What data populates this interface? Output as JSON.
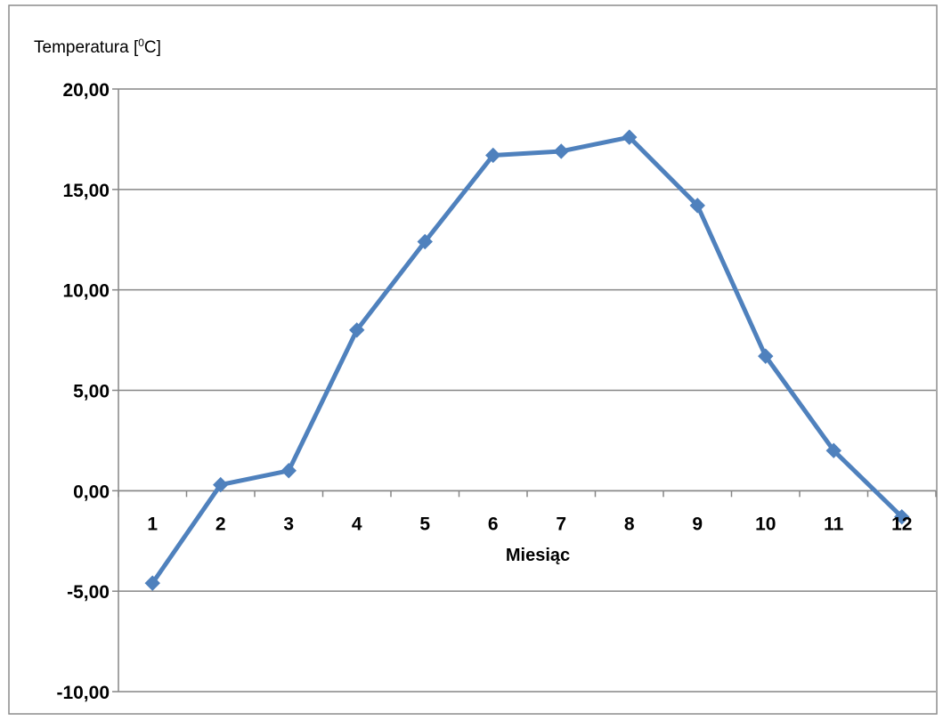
{
  "chart_data": {
    "type": "line",
    "title": "",
    "ylabel": "Temperatura [",
    "ylabel_sup": "0",
    "ylabel_unit": "C]",
    "xlabel": "Miesiąc",
    "categories": [
      "1",
      "2",
      "3",
      "4",
      "5",
      "6",
      "7",
      "8",
      "9",
      "10",
      "11",
      "12"
    ],
    "y_ticks": [
      "20,00",
      "15,00",
      "10,00",
      "5,00",
      "0,00",
      "-5,00",
      "-10,00"
    ],
    "y_tick_values": [
      20,
      15,
      10,
      5,
      0,
      -5,
      -10
    ],
    "ylim": [
      -10,
      20
    ],
    "grid": true,
    "legend": "none",
    "series": [
      {
        "color": "#4f81bd",
        "marker": "diamond",
        "values": [
          -4.6,
          0.3,
          1.0,
          8.0,
          12.4,
          16.7,
          16.9,
          17.6,
          14.2,
          6.7,
          2.0,
          -1.3
        ]
      }
    ]
  }
}
